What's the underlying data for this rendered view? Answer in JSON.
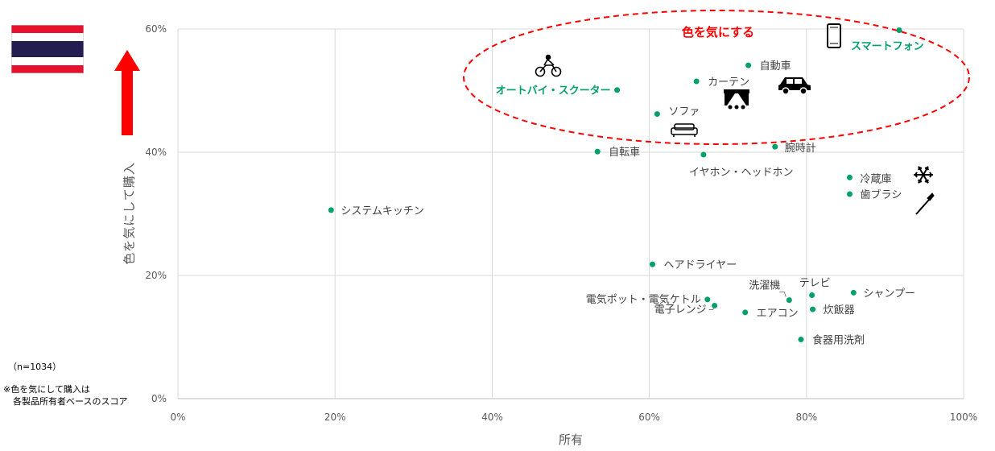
{
  "notes": {
    "sample_size": "（n=1034）",
    "footnote_line1": "※色を気にして購入は",
    "footnote_line2": "各製品所有者ベースのスコア"
  },
  "highlight": {
    "label": "色を気にする",
    "color": "#ff0000"
  },
  "icons": {
    "flag": "thailand-flag-icon",
    "arrow": "up-arrow-icon",
    "motorbike": "motorbike-icon",
    "car": "car-icon",
    "smartphone": "smartphone-icon",
    "curtain": "curtain-icon",
    "sofa": "sofa-icon",
    "fridge": "snowflake-icon",
    "toothbrush": "toothbrush-icon"
  },
  "colors": {
    "point": "#00a06b",
    "highlight_text": "#00a06b",
    "arrow": "#ff0000",
    "grid": "#d9d9d9"
  },
  "chart_data": {
    "type": "scatter",
    "xlabel": "所有",
    "ylabel": "色を気にして購入",
    "xlim": [
      0,
      100
    ],
    "ylim": [
      0,
      60
    ],
    "x_ticks": [
      "0%",
      "20%",
      "40%",
      "60%",
      "80%",
      "100%"
    ],
    "y_ticks": [
      "0%",
      "20%",
      "40%",
      "60%"
    ],
    "grid": true,
    "points": [
      {
        "label": "スマートフォン",
        "x": 91.8,
        "y": 59.8,
        "highlight": true
      },
      {
        "label": "自動車",
        "x": 72.6,
        "y": 54.1
      },
      {
        "label": "カーテン",
        "x": 66.0,
        "y": 51.5
      },
      {
        "label": "オートバイ・スクーター",
        "x": 55.9,
        "y": 50.1,
        "highlight": true
      },
      {
        "label": "ソファ",
        "x": 61.0,
        "y": 46.2
      },
      {
        "label": "腕時計",
        "x": 76.0,
        "y": 40.9
      },
      {
        "label": "自転車",
        "x": 53.4,
        "y": 40.1
      },
      {
        "label": "イヤホン・ヘッドホン",
        "x": 66.9,
        "y": 39.6
      },
      {
        "label": "冷蔵庫",
        "x": 85.5,
        "y": 35.9
      },
      {
        "label": "歯ブラシ",
        "x": 85.5,
        "y": 33.2
      },
      {
        "label": "システムキッチン",
        "x": 19.5,
        "y": 30.6
      },
      {
        "label": "ヘアドライヤー",
        "x": 60.4,
        "y": 21.8
      },
      {
        "label": "テレビ",
        "x": 80.7,
        "y": 16.8
      },
      {
        "label": "シャンプー",
        "x": 86.0,
        "y": 17.2
      },
      {
        "label": "洗濯機",
        "x": 77.8,
        "y": 16.0
      },
      {
        "label": "電気ポット・電気ケトル",
        "x": 67.4,
        "y": 16.1
      },
      {
        "label": "電子レンジ",
        "x": 68.3,
        "y": 15.1
      },
      {
        "label": "炊飯器",
        "x": 80.8,
        "y": 14.5
      },
      {
        "label": "エアコン",
        "x": 72.2,
        "y": 14.0
      },
      {
        "label": "食器用洗剤",
        "x": 79.3,
        "y": 9.6
      }
    ]
  }
}
